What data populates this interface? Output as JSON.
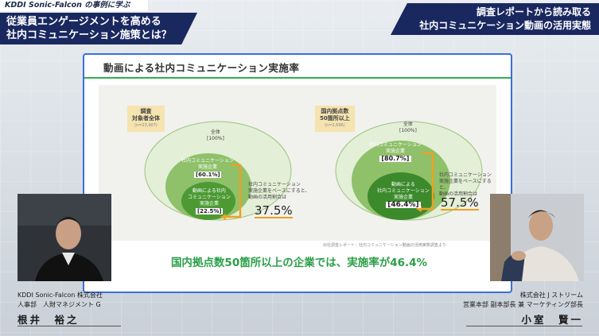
{
  "header_left": {
    "subtitle": "KDDI Sonic-Falcon の事例に学ぶ",
    "title_line1": "従業員エンゲージメントを高める",
    "title_line2": "社内コミュニケーション施策とは？"
  },
  "header_right": {
    "line1": "調査レポートから読み取る",
    "line2": "社内コミュニケーション動画の活用実態"
  },
  "slide": {
    "title": "動画による社内コミュニケーション実施率",
    "left": {
      "label": "調査\n対象者全体",
      "label_line1": "調査",
      "label_line2": "対象者全体",
      "n": "(n=23,907)",
      "outer": "全体",
      "outer_pct": "[100%]",
      "middle_line1": "社内コミュニケーション",
      "middle_line2": "実施企業",
      "middle_pct": "[60.1%]",
      "inner_line1": "動画による社内",
      "inner_line2": "コミュニケーション",
      "inner_line3": "実施企業",
      "inner_pct": "[22.5%]",
      "note_line1": "社内コミュニケーション",
      "note_line2": "実施企業をベースにすると、",
      "note_line3": "動画の活用割合は",
      "rate": "37.5%"
    },
    "right": {
      "label_line1": "国内拠点数",
      "label_line2": "50箇所以上",
      "n": "(n=2,696)",
      "outer": "全体",
      "outer_pct": "[100%]",
      "middle_line1": "社内コミュニケーション",
      "middle_line2": "実施企業",
      "middle_pct": "[80.7%]",
      "inner_line1": "動画による",
      "inner_line2": "社内コミュニケーション",
      "inner_line3": "実施企業",
      "inner_pct": "[46.4%]",
      "note_line1": "社内コミュニケーション",
      "note_line2": "実施企業をベースにすると、",
      "note_line3": "動画の活用割合は",
      "rate": "57.5%"
    },
    "source": "出社調査レポート：社内コミュニケーション動画の活用実態調査より",
    "summary": "国内拠点数50箇所以上の企業では、実施率が46.4%"
  },
  "speaker_left": {
    "company": "KDDI Sonic-Falcon 株式会社",
    "dept": "人事部　人財マネジメント G",
    "name": "根井　裕之"
  },
  "speaker_right": {
    "company": "株式会社 J ストリーム",
    "dept": "営業本部 副本部長 兼 マーケティング部長",
    "name": "小室　賢一"
  },
  "colors": {
    "navy": "#1a2860",
    "green_accent": "#2fae4e",
    "orange_arrow": "#f0a020",
    "slide_border": "#3a6fd8"
  }
}
